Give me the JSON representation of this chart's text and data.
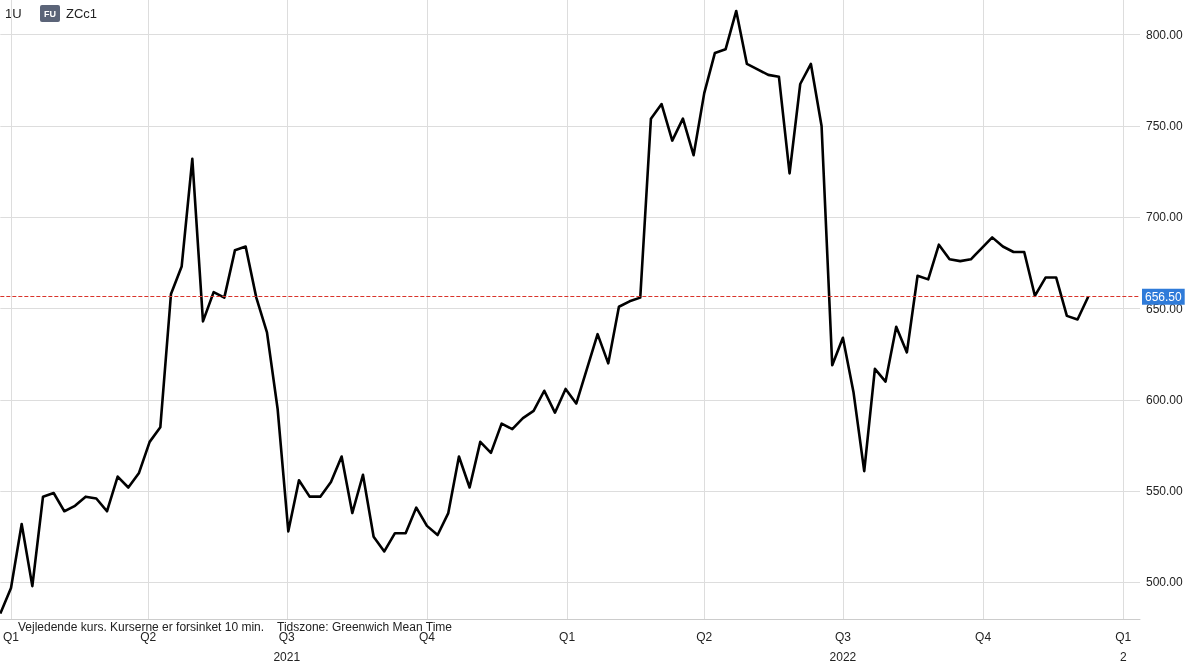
{
  "chart_data": {
    "type": "line",
    "title": "1U",
    "subtitle": "ZCc1",
    "annotations": [
      "FU",
      "Vejledende kurs. Kurserne er forsinket 10 min.",
      "Tidszone: Greenwich Mean Time"
    ],
    "x": [
      "2020-12-25",
      "2021-01-01",
      "2021-01-08",
      "2021-01-15",
      "2021-01-22",
      "2021-01-29",
      "2021-02-05",
      "2021-02-12",
      "2021-02-19",
      "2021-02-26",
      "2021-03-05",
      "2021-03-12",
      "2021-03-19",
      "2021-03-26",
      "2021-04-02",
      "2021-04-09",
      "2021-04-16",
      "2021-04-23",
      "2021-04-30",
      "2021-05-07",
      "2021-05-14",
      "2021-05-21",
      "2021-05-28",
      "2021-06-04",
      "2021-06-11",
      "2021-06-18",
      "2021-06-25",
      "2021-07-02",
      "2021-07-09",
      "2021-07-16",
      "2021-07-23",
      "2021-07-30",
      "2021-08-06",
      "2021-08-13",
      "2021-08-20",
      "2021-08-27",
      "2021-09-03",
      "2021-09-10",
      "2021-09-17",
      "2021-09-24",
      "2021-10-01",
      "2021-10-08",
      "2021-10-15",
      "2021-10-22",
      "2021-10-29",
      "2021-11-05",
      "2021-11-12",
      "2021-11-19",
      "2021-11-26",
      "2021-12-03",
      "2021-12-10",
      "2021-12-17",
      "2021-12-24",
      "2021-12-31",
      "2022-01-07",
      "2022-01-14",
      "2022-01-21",
      "2022-01-28",
      "2022-02-04",
      "2022-02-11",
      "2022-02-18",
      "2022-02-25",
      "2022-03-04",
      "2022-03-11",
      "2022-03-18",
      "2022-03-25",
      "2022-04-01",
      "2022-04-08",
      "2022-04-15",
      "2022-04-22",
      "2022-04-29",
      "2022-05-06",
      "2022-05-13",
      "2022-05-20",
      "2022-05-27",
      "2022-06-03",
      "2022-06-10",
      "2022-06-17",
      "2022-06-24",
      "2022-07-01",
      "2022-07-08",
      "2022-07-15",
      "2022-07-22",
      "2022-07-29",
      "2022-08-05",
      "2022-08-12",
      "2022-08-19",
      "2022-08-26",
      "2022-09-02",
      "2022-09-09",
      "2022-09-16",
      "2022-09-23",
      "2022-09-30",
      "2022-10-07",
      "2022-10-14",
      "2022-10-21",
      "2022-10-28",
      "2022-11-04",
      "2022-11-11",
      "2022-11-18",
      "2022-11-25",
      "2022-12-02",
      "2022-12-09"
    ],
    "series": [
      {
        "color": "#000000",
        "values": [
          483,
          497,
          532,
          498,
          547,
          549,
          539,
          542,
          547,
          546,
          539,
          558,
          552,
          560,
          577,
          585,
          658,
          673,
          732,
          643,
          659,
          656,
          682,
          684,
          656,
          637,
          595,
          528,
          556,
          547,
          547,
          555,
          569,
          538,
          559,
          525,
          517,
          527,
          527,
          541,
          531,
          526,
          538,
          569,
          552,
          577,
          571,
          587,
          584,
          590,
          594,
          605,
          593,
          606,
          598,
          617,
          636,
          620,
          651,
          654,
          656,
          754,
          762,
          742,
          754,
          734,
          768,
          790,
          792,
          813,
          784,
          781,
          778,
          777,
          724,
          773,
          784,
          750,
          619,
          634,
          604,
          561,
          617,
          610,
          640,
          626,
          668,
          666,
          685,
          677,
          676,
          677,
          683,
          689,
          684,
          681,
          681,
          657,
          667,
          667,
          646,
          644,
          656.5
        ]
      }
    ],
    "xlim": [
      "2020-12-25",
      "2023-01-12"
    ],
    "xticks": [
      {
        "value": "2021-01-01",
        "label": "Q1"
      },
      {
        "value": "2021-04-01",
        "label": "Q2"
      },
      {
        "value": "2021-07-01",
        "label": "Q3\n2021"
      },
      {
        "value": "2021-10-01",
        "label": "Q4"
      },
      {
        "value": "2022-01-01",
        "label": "Q1"
      },
      {
        "value": "2022-04-01",
        "label": "Q2"
      },
      {
        "value": "2022-07-01",
        "label": "Q3\n2022"
      },
      {
        "value": "2022-10-01",
        "label": "Q4"
      },
      {
        "value": "2023-01-01",
        "label": "Q1\n2"
      }
    ],
    "ylim": [
      480,
      819
    ],
    "yticks": [
      {
        "value": 500,
        "label": "500.00"
      },
      {
        "value": 550,
        "label": "550.00"
      },
      {
        "value": 600,
        "label": "600.00"
      },
      {
        "value": 650,
        "label": "650.00"
      },
      {
        "value": 700,
        "label": "700.00"
      },
      {
        "value": 750,
        "label": "750.00"
      },
      {
        "value": 800,
        "label": "800.00"
      }
    ],
    "ref_lines": [
      {
        "axis": "y",
        "value": 656.5,
        "label": "656.50",
        "color": "#d9342b",
        "line_style": "dashed"
      }
    ],
    "grid": true,
    "marker": "none",
    "line_style": "solid"
  }
}
